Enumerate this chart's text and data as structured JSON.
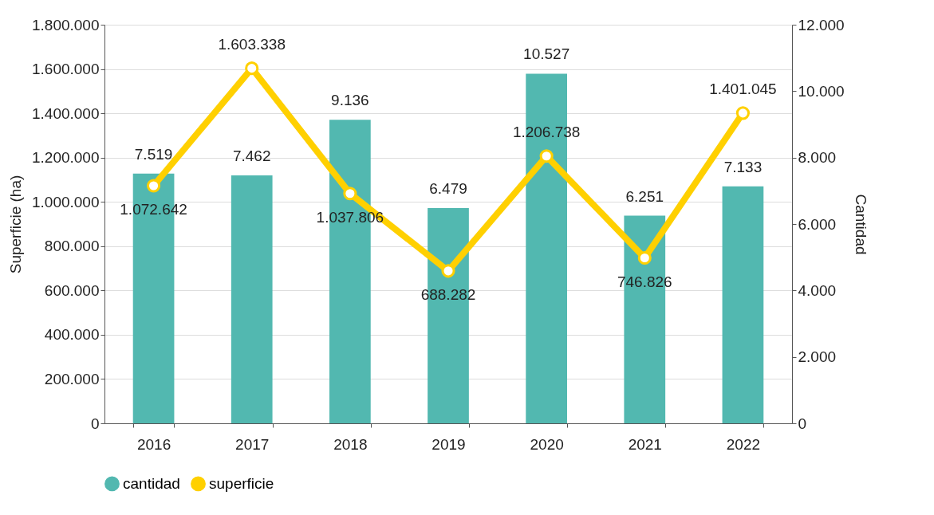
{
  "chart_data": {
    "type": "bar",
    "ylabel": "Superficie (ha)",
    "y2label": "Cantidad",
    "categories": [
      "2016",
      "2017",
      "2018",
      "2019",
      "2020",
      "2021",
      "2022"
    ],
    "series": [
      {
        "name": "cantidad",
        "axis": "y2",
        "color": "#52b8b0",
        "values": [
          7519,
          7462,
          9136,
          6479,
          10527,
          6251,
          7133
        ],
        "value_labels": [
          "7.519",
          "7.462",
          "9.136",
          "6.479",
          "10.527",
          "6.251",
          "7.133"
        ]
      },
      {
        "name": "superficie",
        "type": "line",
        "color": "#ffd000",
        "values": [
          1072642,
          1603338,
          1037806,
          688282,
          1206738,
          746826,
          1401045
        ],
        "value_labels": [
          "1.072.642",
          "1.603.338",
          "1.037.806",
          "688.282",
          "1.206.738",
          "746.826",
          "1.401.045"
        ]
      }
    ],
    "ylim": [
      0,
      1800000
    ],
    "yticks": [
      0,
      {
        "value": 200000,
        "label": "200.000"
      },
      {
        "value": 400000,
        "label": "400.000"
      },
      {
        "value": 600000,
        "label": "600.000"
      },
      {
        "value": 800000,
        "label": "800.000"
      },
      {
        "value": 1000000,
        "label": "1.000.000"
      },
      {
        "value": 1200000,
        "label": "1.200.000"
      },
      {
        "value": 1400000,
        "label": "1.400.000"
      },
      {
        "value": 1600000,
        "label": "1.600.000"
      },
      {
        "value": 1800000,
        "label": "1.800.000"
      }
    ],
    "y2lim": [
      0,
      12000
    ],
    "y2ticks": [
      0,
      {
        "value": 2000,
        "label": "2.000"
      },
      {
        "value": 4000,
        "label": "4.000"
      },
      {
        "value": 6000,
        "label": "6.000"
      },
      {
        "value": 8000,
        "label": "8.000"
      },
      {
        "value": 10000,
        "label": "10.000"
      },
      {
        "value": 12000,
        "label": "12.000"
      }
    ],
    "grid": "y",
    "legend": "bottom",
    "marker": "circle",
    "line_style": "solid"
  }
}
